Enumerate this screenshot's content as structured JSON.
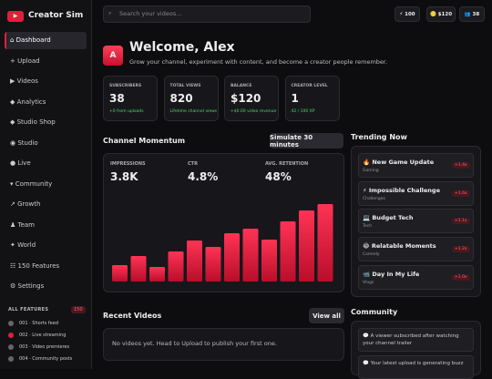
{
  "app": {
    "name": "Creator Sim"
  },
  "nav": [
    "⌂ Dashboard",
    "+ Upload",
    "▶ Videos",
    "◆ Analytics",
    "◆ Studio Shop",
    "◉ Studio",
    "● Live",
    "▾ Community",
    "↗ Growth",
    "♟ Team",
    "✦ World",
    "☷ 150 Features",
    "⚙ Settings"
  ],
  "features": {
    "title": "ALL FEATURES",
    "count": "150",
    "items": [
      "001 · Shorts feed",
      "002 · Live streaming",
      "003 · Video premieres",
      "004 · Community posts"
    ]
  },
  "topbar": {
    "search": "Search your videos...",
    "pills": [
      "⚡ 100",
      "🪙 $120",
      "👥 38"
    ]
  },
  "welcome": {
    "avatar": "A",
    "title": "Welcome, Alex",
    "subtitle": "Grow your channel, experiment with content, and become a creator people remember."
  },
  "stats": [
    {
      "label": "SUBSCRIBERS",
      "value": "38",
      "note": "+0 from uploads"
    },
    {
      "label": "TOTAL VIEWS",
      "value": "820",
      "note": "Lifetime channel views"
    },
    {
      "label": "BALANCE",
      "value": "$120",
      "note": "+$0.00 video revenue"
    },
    {
      "label": "CREATOR LEVEL",
      "value": "1",
      "note": "42 / 100 XP"
    }
  ],
  "momentum": {
    "title": "Channel Momentum",
    "button": "Simulate 30 minutes",
    "metrics": [
      {
        "label": "IMPRESSIONS",
        "value": "3.8K"
      },
      {
        "label": "CTR",
        "value": "4.8%"
      },
      {
        "label": "AVG. RETENTION",
        "value": "48%"
      }
    ],
    "values": [
      18,
      28,
      16,
      33,
      45,
      38,
      53,
      58,
      46,
      66,
      78,
      85
    ]
  },
  "trending": {
    "title": "Trending Now",
    "items": [
      {
        "name": "🔥 New Game Update",
        "genre": "Gaming",
        "boost": "+1.4x"
      },
      {
        "name": "⚡ Impossible Challenge",
        "genre": "Challenges",
        "boost": "+1.6x"
      },
      {
        "name": "💻 Budget Tech",
        "genre": "Tech",
        "boost": "+1.1x"
      },
      {
        "name": "😂 Relatable Moments",
        "genre": "Comedy",
        "boost": "+1.2x"
      },
      {
        "name": "📹 Day In My Life",
        "genre": "Vlogs",
        "boost": "+1.0x"
      }
    ]
  },
  "recent": {
    "title": "Recent Videos",
    "button": "View all",
    "empty": "No videos yet. Head to Upload to publish your first one."
  },
  "community": {
    "title": "Community",
    "items": [
      "💬 A viewer subscribed after watching your channel trailer",
      "💬 Your latest upload is generating buzz"
    ]
  }
}
